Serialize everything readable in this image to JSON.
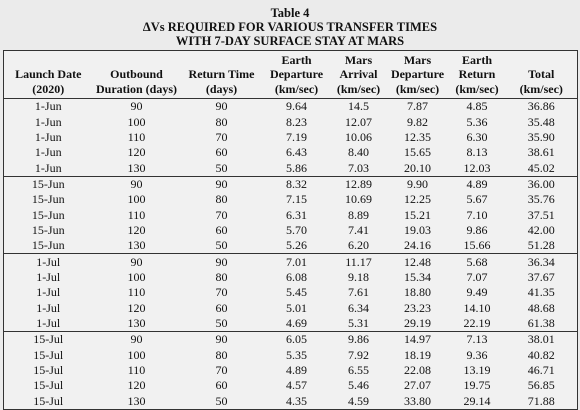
{
  "title": [
    "Table 4",
    "ΔVs REQUIRED FOR VARIOUS TRANSFER TIMES",
    "WITH 7-DAY SURFACE STAY AT MARS"
  ],
  "table": {
    "headers": [
      [
        "Launch Date",
        "(2020)"
      ],
      [
        "Outbound",
        "Duration (days)"
      ],
      [
        "Return Time",
        "(days)"
      ],
      [
        "Earth",
        "Departure",
        "(km/sec)"
      ],
      [
        "Mars",
        "Arrival",
        "(km/sec)"
      ],
      [
        "Mars",
        "Departure",
        "(km/sec)"
      ],
      [
        "Earth",
        "Return",
        "(km/sec)"
      ],
      [
        "Total",
        "(km/sec)"
      ]
    ],
    "groups": [
      {
        "rows": [
          [
            "1-Jun",
            "90",
            "90",
            "9.64",
            "14.5",
            "7.87",
            "4.85",
            "36.86"
          ],
          [
            "1-Jun",
            "100",
            "80",
            "8.23",
            "12.07",
            "9.82",
            "5.36",
            "35.48"
          ],
          [
            "1-Jun",
            "110",
            "70",
            "7.19",
            "10.06",
            "12.35",
            "6.30",
            "35.90"
          ],
          [
            "1-Jun",
            "120",
            "60",
            "6.43",
            "8.40",
            "15.65",
            "8.13",
            "38.61"
          ],
          [
            "1-Jun",
            "130",
            "50",
            "5.86",
            "7.03",
            "20.10",
            "12.03",
            "45.02"
          ]
        ]
      },
      {
        "rows": [
          [
            "15-Jun",
            "90",
            "90",
            "8.32",
            "12.89",
            "9.90",
            "4.89",
            "36.00"
          ],
          [
            "15-Jun",
            "100",
            "80",
            "7.15",
            "10.69",
            "12.25",
            "5.67",
            "35.76"
          ],
          [
            "15-Jun",
            "110",
            "70",
            "6.31",
            "8.89",
            "15.21",
            "7.10",
            "37.51"
          ],
          [
            "15-Jun",
            "120",
            "60",
            "5.70",
            "7.41",
            "19.03",
            "9.86",
            "42.00"
          ],
          [
            "15-Jun",
            "130",
            "50",
            "5.26",
            "6.20",
            "24.16",
            "15.66",
            "51.28"
          ]
        ]
      },
      {
        "rows": [
          [
            "1-Jul",
            "90",
            "90",
            "7.01",
            "11.17",
            "12.48",
            "5.68",
            "36.34"
          ],
          [
            "1-Jul",
            "100",
            "80",
            "6.08",
            "9.18",
            "15.34",
            "7.07",
            "37.67"
          ],
          [
            "1-Jul",
            "110",
            "70",
            "5.45",
            "7.61",
            "18.80",
            "9.49",
            "41.35"
          ],
          [
            "1-Jul",
            "120",
            "60",
            "5.01",
            "6.34",
            "23.23",
            "14.10",
            "48.68"
          ],
          [
            "1-Jul",
            "130",
            "50",
            "4.69",
            "5.31",
            "29.19",
            "22.19",
            "61.38"
          ]
        ]
      },
      {
        "rows": [
          [
            "15-Jul",
            "90",
            "90",
            "6.05",
            "9.86",
            "14.97",
            "7.13",
            "38.01"
          ],
          [
            "15-Jul",
            "100",
            "80",
            "5.35",
            "7.92",
            "18.19",
            "9.36",
            "40.82"
          ],
          [
            "15-Jul",
            "110",
            "70",
            "4.89",
            "6.55",
            "22.08",
            "13.19",
            "46.71"
          ],
          [
            "15-Jul",
            "120",
            "60",
            "4.57",
            "5.46",
            "27.07",
            "19.75",
            "56.85"
          ],
          [
            "15-Jul",
            "130",
            "50",
            "4.35",
            "4.59",
            "33.80",
            "29.14",
            "71.88"
          ]
        ]
      }
    ]
  }
}
